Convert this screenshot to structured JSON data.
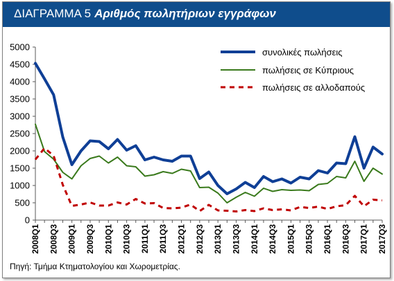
{
  "header": {
    "prefix": "ΔΙΑΓΡΑΜΜΑ 5",
    "title": "Αριθμός πωλητήριων εγγράφων",
    "background": "#0f4d8c"
  },
  "source": "Πηγή: Τμήμα Κτηματολογίου και Χωρομετρίας.",
  "chart_data": {
    "type": "line",
    "title": "Αριθμός πωλητήριων εγγράφων",
    "xlabel": "",
    "ylabel": "",
    "ylim": [
      0,
      5000
    ],
    "yticks": [
      0,
      500,
      1000,
      1500,
      2000,
      2500,
      3000,
      3500,
      4000,
      4500,
      5000
    ],
    "grid": false,
    "legend_position": "top-right",
    "categories": [
      "2008Q1",
      "2008Q2",
      "2008Q3",
      "2008Q4",
      "2009Q1",
      "2009Q2",
      "2009Q3",
      "2009Q4",
      "2010Q1",
      "2010Q2",
      "2010Q3",
      "2010Q4",
      "2011Q1",
      "2011Q2",
      "2011Q3",
      "2011Q4",
      "2012Q1",
      "2012Q2",
      "2012Q3",
      "2012Q4",
      "2013Q1",
      "2013Q2",
      "2013Q3",
      "2013Q4",
      "2014Q1",
      "2014Q2",
      "2014Q3",
      "2014Q4",
      "2015Q1",
      "2015Q2",
      "2015Q3",
      "2015Q4",
      "2016Q1",
      "2016Q2",
      "2016Q3",
      "2016Q4",
      "2017Q1",
      "2017Q2",
      "2017Q3"
    ],
    "tick_labels": [
      "2008Q1",
      "2008Q3",
      "2009Q1",
      "2009Q3",
      "2010Q1",
      "2010Q3",
      "2011Q1",
      "2011Q3",
      "2012Q1",
      "2012Q3",
      "2013Q1",
      "2013Q3",
      "2014Q1",
      "2014Q3",
      "2015Q1",
      "2015Q3",
      "2016Q1",
      "2016Q3",
      "2017Q1",
      "2017Q3"
    ],
    "series": [
      {
        "name": "συνολικές πωλήσεις",
        "color": "#0f3f96",
        "style": "solid-thick",
        "values": [
          4530,
          4080,
          3620,
          2400,
          1600,
          2000,
          2290,
          2270,
          2060,
          2330,
          2020,
          2150,
          1740,
          1820,
          1740,
          1700,
          1850,
          1850,
          1200,
          1390,
          1000,
          760,
          900,
          1090,
          940,
          1260,
          1110,
          1190,
          1070,
          1240,
          1190,
          1430,
          1360,
          1650,
          1630,
          2410,
          1500,
          2110,
          1910
        ]
      },
      {
        "name": "πωλήσεις σε Κύπριους",
        "color": "#3a7a1c",
        "style": "solid",
        "values": [
          2770,
          1980,
          1760,
          1380,
          1190,
          1570,
          1780,
          1850,
          1650,
          1820,
          1570,
          1540,
          1270,
          1310,
          1400,
          1350,
          1470,
          1420,
          940,
          950,
          780,
          500,
          660,
          800,
          690,
          920,
          830,
          880,
          860,
          870,
          850,
          1030,
          1060,
          1260,
          1220,
          1700,
          1120,
          1500,
          1330
        ]
      },
      {
        "name": "πωλήσεις σε αλλοδαπούς",
        "color": "#c00000",
        "style": "dashed",
        "values": [
          1750,
          2080,
          1860,
          1020,
          410,
          450,
          510,
          420,
          420,
          510,
          450,
          610,
          480,
          490,
          350,
          340,
          360,
          450,
          260,
          440,
          280,
          270,
          250,
          290,
          260,
          340,
          290,
          310,
          280,
          380,
          350,
          390,
          320,
          400,
          430,
          700,
          400,
          590,
          570
        ]
      }
    ]
  }
}
